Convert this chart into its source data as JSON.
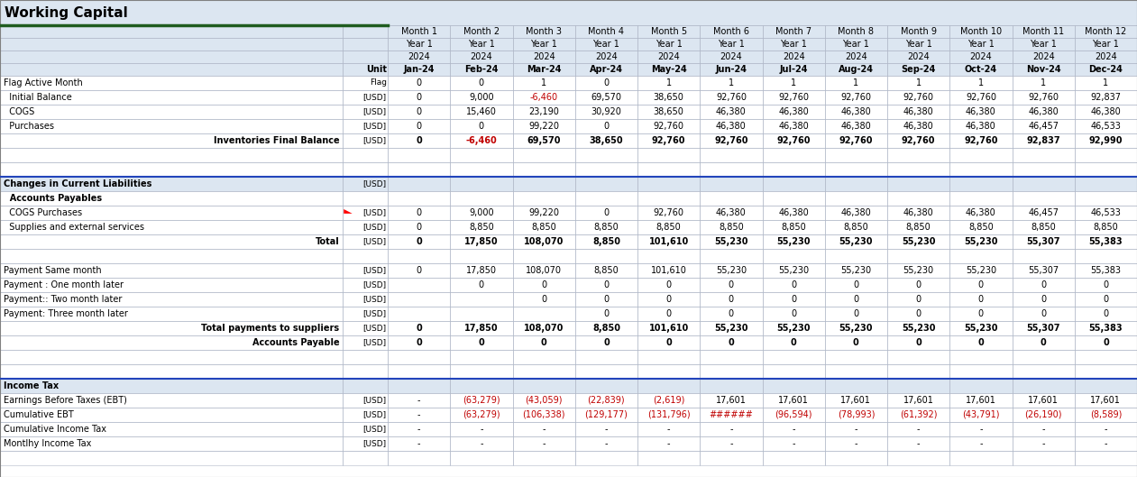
{
  "title": "Working Capital",
  "header_rows": [
    [
      "",
      "",
      "Month 1",
      "Month 2",
      "Month 3",
      "Month 4",
      "Month 5",
      "Month 6",
      "Month 7",
      "Month 8",
      "Month 9",
      "Month 10",
      "Month 11",
      "Month 12"
    ],
    [
      "",
      "",
      "Year 1",
      "Year 1",
      "Year 1",
      "Year 1",
      "Year 1",
      "Year 1",
      "Year 1",
      "Year 1",
      "Year 1",
      "Year 1",
      "Year 1",
      "Year 1"
    ],
    [
      "",
      "",
      "2024",
      "2024",
      "2024",
      "2024",
      "2024",
      "2024",
      "2024",
      "2024",
      "2024",
      "2024",
      "2024",
      "2024"
    ],
    [
      "",
      "Unit",
      "Jan-24",
      "Feb-24",
      "Mar-24",
      "Apr-24",
      "May-24",
      "Jun-24",
      "Jul-24",
      "Aug-24",
      "Sep-24",
      "Oct-24",
      "Nov-24",
      "Dec-24"
    ]
  ],
  "rows": [
    {
      "label": "Flag Active Month",
      "unit": "Flag",
      "bold": false,
      "section_header": false,
      "values": [
        "0",
        "0",
        "1",
        "0",
        "1",
        "1",
        "1",
        "1",
        "1",
        "1",
        "1",
        "1"
      ],
      "align_label": "left"
    },
    {
      "label": "  Initial Balance",
      "unit": "[USD]",
      "bold": false,
      "section_header": false,
      "values": [
        "0",
        "9,000",
        "-6,460",
        "69,570",
        "38,650",
        "92,760",
        "92,760",
        "92,760",
        "92,760",
        "92,760",
        "92,760",
        "92,837"
      ],
      "align_label": "left"
    },
    {
      "label": "  COGS",
      "unit": "[USD]",
      "bold": false,
      "section_header": false,
      "values": [
        "0",
        "15,460",
        "23,190",
        "30,920",
        "38,650",
        "46,380",
        "46,380",
        "46,380",
        "46,380",
        "46,380",
        "46,380",
        "46,380"
      ],
      "align_label": "left"
    },
    {
      "label": "  Purchases",
      "unit": "[USD]",
      "bold": false,
      "section_header": false,
      "values": [
        "0",
        "0",
        "99,220",
        "0",
        "92,760",
        "46,380",
        "46,380",
        "46,380",
        "46,380",
        "46,380",
        "46,457",
        "46,533"
      ],
      "align_label": "left"
    },
    {
      "label": "Inventories Final Balance",
      "unit": "[USD]",
      "bold": true,
      "section_header": false,
      "values": [
        "0",
        "-6,460",
        "69,570",
        "38,650",
        "92,760",
        "92,760",
        "92,760",
        "92,760",
        "92,760",
        "92,760",
        "92,837",
        "92,990"
      ],
      "align_label": "right"
    },
    {
      "label": "",
      "unit": "",
      "bold": false,
      "section_header": false,
      "values": [
        "",
        "",
        "",
        "",
        "",
        "",
        "",
        "",
        "",
        "",
        "",
        ""
      ],
      "align_label": "left"
    },
    {
      "label": "",
      "unit": "",
      "bold": false,
      "section_header": false,
      "values": [
        "",
        "",
        "",
        "",
        "",
        "",
        "",
        "",
        "",
        "",
        "",
        ""
      ],
      "align_label": "left"
    },
    {
      "label": "Changes in Current Liabilities",
      "unit": "[USD]",
      "bold": true,
      "section_header": true,
      "values": [
        "",
        "",
        "",
        "",
        "",
        "",
        "",
        "",
        "",
        "",
        "",
        ""
      ],
      "align_label": "left"
    },
    {
      "label": "  Accounts Payables",
      "unit": "",
      "bold": true,
      "section_header": false,
      "values": [
        "",
        "",
        "",
        "",
        "",
        "",
        "",
        "",
        "",
        "",
        "",
        ""
      ],
      "align_label": "left"
    },
    {
      "label": "  COGS Purchases",
      "unit": "[USD]",
      "bold": false,
      "section_header": false,
      "values": [
        "0",
        "9,000",
        "99,220",
        "0",
        "92,760",
        "46,380",
        "46,380",
        "46,380",
        "46,380",
        "46,380",
        "46,457",
        "46,533"
      ],
      "align_label": "left",
      "red_triangle": true
    },
    {
      "label": "  Supplies and external services",
      "unit": "[USD]",
      "bold": false,
      "section_header": false,
      "values": [
        "0",
        "8,850",
        "8,850",
        "8,850",
        "8,850",
        "8,850",
        "8,850",
        "8,850",
        "8,850",
        "8,850",
        "8,850",
        "8,850"
      ],
      "align_label": "left"
    },
    {
      "label": "Total",
      "unit": "[USD]",
      "bold": true,
      "section_header": false,
      "values": [
        "0",
        "17,850",
        "108,070",
        "8,850",
        "101,610",
        "55,230",
        "55,230",
        "55,230",
        "55,230",
        "55,230",
        "55,307",
        "55,383"
      ],
      "align_label": "right"
    },
    {
      "label": "",
      "unit": "",
      "bold": false,
      "section_header": false,
      "values": [
        "",
        "",
        "",
        "",
        "",
        "",
        "",
        "",
        "",
        "",
        "",
        ""
      ],
      "align_label": "left"
    },
    {
      "label": "Payment Same month",
      "unit": "[USD]",
      "bold": false,
      "section_header": false,
      "values": [
        "0",
        "17,850",
        "108,070",
        "8,850",
        "101,610",
        "55,230",
        "55,230",
        "55,230",
        "55,230",
        "55,230",
        "55,307",
        "55,383"
      ],
      "align_label": "left"
    },
    {
      "label": "Payment : One month later",
      "unit": "[USD]",
      "bold": false,
      "section_header": false,
      "values": [
        "",
        "0",
        "0",
        "0",
        "0",
        "0",
        "0",
        "0",
        "0",
        "0",
        "0",
        "0"
      ],
      "align_label": "left"
    },
    {
      "label": "Payment:: Two month later",
      "unit": "[USD]",
      "bold": false,
      "section_header": false,
      "values": [
        "",
        "",
        "0",
        "0",
        "0",
        "0",
        "0",
        "0",
        "0",
        "0",
        "0",
        "0"
      ],
      "align_label": "left"
    },
    {
      "label": "Payment: Three month later",
      "unit": "[USD]",
      "bold": false,
      "section_header": false,
      "values": [
        "",
        "",
        "",
        "0",
        "0",
        "0",
        "0",
        "0",
        "0",
        "0",
        "0",
        "0"
      ],
      "align_label": "left"
    },
    {
      "label": "Total payments to suppliers",
      "unit": "[USD]",
      "bold": true,
      "section_header": false,
      "values": [
        "0",
        "17,850",
        "108,070",
        "8,850",
        "101,610",
        "55,230",
        "55,230",
        "55,230",
        "55,230",
        "55,230",
        "55,307",
        "55,383"
      ],
      "align_label": "right"
    },
    {
      "label": "Accounts Payable",
      "unit": "[USD]",
      "bold": true,
      "section_header": false,
      "values": [
        "0",
        "0",
        "0",
        "0",
        "0",
        "0",
        "0",
        "0",
        "0",
        "0",
        "0",
        "0"
      ],
      "align_label": "right"
    },
    {
      "label": "",
      "unit": "",
      "bold": false,
      "section_header": false,
      "values": [
        "",
        "",
        "",
        "",
        "",
        "",
        "",
        "",
        "",
        "",
        "",
        ""
      ],
      "align_label": "left"
    },
    {
      "label": "",
      "unit": "",
      "bold": false,
      "section_header": false,
      "values": [
        "",
        "",
        "",
        "",
        "",
        "",
        "",
        "",
        "",
        "",
        "",
        ""
      ],
      "align_label": "left"
    },
    {
      "label": "Income Tax",
      "unit": "",
      "bold": true,
      "section_header": true,
      "values": [
        "",
        "",
        "",
        "",
        "",
        "",
        "",
        "",
        "",
        "",
        "",
        ""
      ],
      "align_label": "left"
    },
    {
      "label": "Earnings Before Taxes (EBT)",
      "unit": "[USD]",
      "bold": false,
      "section_header": false,
      "values": [
        "-",
        "(63,279)",
        "(43,059)",
        "(22,839)",
        "(2,619)",
        "17,601",
        "17,601",
        "17,601",
        "17,601",
        "17,601",
        "17,601",
        "17,601"
      ],
      "align_label": "left"
    },
    {
      "label": "Cumulative EBT",
      "unit": "[USD]",
      "bold": false,
      "section_header": false,
      "values": [
        "-",
        "(63,279)",
        "(106,338)",
        "(129,177)",
        "(131,796)",
        "######",
        "(96,594)",
        "(78,993)",
        "(61,392)",
        "(43,791)",
        "(26,190)",
        "(8,589)"
      ],
      "align_label": "left"
    },
    {
      "label": "Cumulative Income Tax",
      "unit": "[USD]",
      "bold": false,
      "section_header": false,
      "values": [
        "-",
        "-",
        "-",
        "-",
        "-",
        "-",
        "-",
        "-",
        "-",
        "-",
        "-",
        "-"
      ],
      "align_label": "left"
    },
    {
      "label": "Montlhy Income Tax",
      "unit": "[USD]",
      "bold": false,
      "section_header": false,
      "values": [
        "-",
        "-",
        "-",
        "-",
        "-",
        "-",
        "-",
        "-",
        "-",
        "-",
        "-",
        "-"
      ],
      "align_label": "left"
    },
    {
      "label": "",
      "unit": "",
      "bold": false,
      "section_header": false,
      "values": [
        "",
        "",
        "",
        "",
        "",
        "",
        "",
        "",
        "",
        "",
        "",
        ""
      ],
      "align_label": "left"
    }
  ],
  "bg_header": "#dce6f1",
  "bg_title": "#dce6f1",
  "border_color": "#b0b8c8",
  "title_border_color": "#1f5c1f",
  "section_bg": "#dce6f1",
  "bold_line_color": "#2244bb",
  "neg_color": "#c00000",
  "title_fontsize": 11,
  "header_fontsize": 7,
  "data_fontsize": 7,
  "unit_fontsize": 6.5
}
